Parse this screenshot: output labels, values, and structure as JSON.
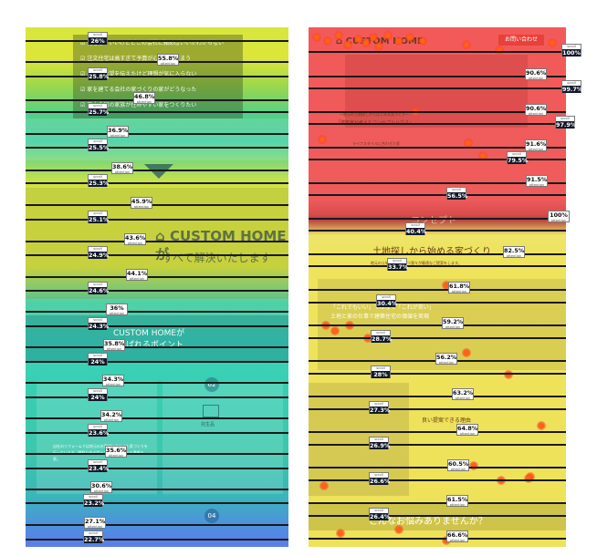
{
  "left_panel": {
    "checklist": [
      "何をしていいけどどこの会社に頼めばいいかわからない",
      "注文住宅は高すぎて予算が心配してしまう",
      "自分の希望を伝えたけど理想が気に入らない",
      "家を建てる会社の家づくりの家がどうなった",
      "日本全国の家族が住みやすい家をつくりたい"
    ],
    "brand_title": "CUSTOM HOME",
    "brand_suffix": "が",
    "brand_subtitle": "すべて解決いたします",
    "section_title_1": "CUSTOM HOMEが",
    "section_title_2": "ばれるポイント",
    "point_02": "02",
    "point_02_title": "完生品",
    "point_04": "04",
    "point_body": "自社のリフォームでは地元のお客様に合わせた家づくりを行っています。間取りやデザインを自由に選べる理想の家。"
  },
  "right_panel": {
    "logo": "CUSTOM HOME",
    "contact_button": "お問い合わせ",
    "hero_caption": "〜地元の土地探しからはじめる家づくり〜",
    "hero_title": "「建築家が考えたコンセプトハウス」",
    "hero_sub": "ライフスタイルに合わせた家",
    "concept_heading": "コンセプト",
    "concept_title": "土地探しから始める家づくり",
    "concept_desc": "地元の土地の情報を持つ我々が最適なご提案をします。",
    "quote_title": "「これでもいい」ではなく「これが良い」",
    "quote_sub": "土地と家の仕事で建築住宅の価値を実現",
    "reason_title": "良い提案できる理由",
    "worry_title": "こんなお悩みありませんか？"
  },
  "left_scroll_markers": [
    {
      "label": "scroll",
      "value": "26%"
    },
    {
      "label": "scroll",
      "value": "25.8%"
    },
    {
      "label": "scroll",
      "value": "25.7%"
    },
    {
      "label": "scroll",
      "value": "25.5%"
    },
    {
      "label": "scroll",
      "value": "25.3%"
    },
    {
      "label": "scroll",
      "value": "25.1%"
    },
    {
      "label": "scroll",
      "value": "24.9%"
    },
    {
      "label": "scroll",
      "value": "24.6%"
    },
    {
      "label": "scroll",
      "value": "24.3%"
    },
    {
      "label": "scroll",
      "value": "24%"
    },
    {
      "label": "scroll",
      "value": "24%"
    },
    {
      "label": "scroll",
      "value": "23.6%"
    },
    {
      "label": "scroll",
      "value": "23.4%"
    },
    {
      "label": "scroll",
      "value": "23.2%"
    },
    {
      "label": "scroll",
      "value": "22.7%"
    }
  ],
  "left_attention_markers": [
    {
      "label": "attention",
      "value": "55.8%"
    },
    {
      "label": "attention",
      "value": "46.8%"
    },
    {
      "label": "attention",
      "value": "36.9%"
    },
    {
      "label": "attention",
      "value": "38.6%"
    },
    {
      "label": "attention",
      "value": "45.9%"
    },
    {
      "label": "attention",
      "value": "43.6%"
    },
    {
      "label": "attention",
      "value": "44.1%"
    },
    {
      "label": "attention",
      "value": "36%"
    },
    {
      "label": "attention",
      "value": "35.8%"
    },
    {
      "label": "attention",
      "value": "34.3%"
    },
    {
      "label": "attention",
      "value": "34.2%"
    },
    {
      "label": "attention",
      "value": "35.6%"
    },
    {
      "label": "attention",
      "value": "30.6%"
    },
    {
      "label": "attention",
      "value": "27.1%"
    }
  ],
  "right_scroll_markers": [
    {
      "label": "scroll",
      "value": "100%"
    },
    {
      "label": "scroll",
      "value": "99.7%"
    },
    {
      "label": "scroll",
      "value": "97.9%"
    },
    {
      "label": "scroll",
      "value": "79.5%"
    },
    {
      "label": "scroll",
      "value": "56.5%"
    },
    {
      "label": "scroll",
      "value": "40.4%"
    },
    {
      "label": "scroll",
      "value": "33.7%"
    },
    {
      "label": "scroll",
      "value": "30.4%"
    },
    {
      "label": "scroll",
      "value": "28.7%"
    },
    {
      "label": "scroll",
      "value": "28%"
    },
    {
      "label": "scroll",
      "value": "27.3%"
    },
    {
      "label": "scroll",
      "value": "26.9%"
    },
    {
      "label": "scroll",
      "value": "26.6%"
    },
    {
      "label": "scroll",
      "value": "26.4%"
    }
  ],
  "right_attention_markers": [
    {
      "label": "attention",
      "value": "90.6%"
    },
    {
      "label": "attention",
      "value": "90.6%"
    },
    {
      "label": "attention",
      "value": "91.6%"
    },
    {
      "label": "attention",
      "value": "91.5%"
    },
    {
      "label": "attention",
      "value": "100%"
    },
    {
      "label": "attention",
      "value": "82.5%"
    },
    {
      "label": "attention",
      "value": "61.8%"
    },
    {
      "label": "attention",
      "value": "59.2%"
    },
    {
      "label": "attention",
      "value": "56.2%"
    },
    {
      "label": "attention",
      "value": "63.2%"
    },
    {
      "label": "attention",
      "value": "64.8%"
    },
    {
      "label": "attention",
      "value": "60.5%"
    },
    {
      "label": "attention",
      "value": "61.5%"
    },
    {
      "label": "attention",
      "value": "66.6%"
    }
  ],
  "colors": {
    "heat_low": "#5a7de8",
    "heat_mid": "#3ed5ba",
    "heat_high_yellow": "#d8e53e",
    "heat_max_red": "#f25a5a",
    "marker_dark": "#121a2a"
  }
}
